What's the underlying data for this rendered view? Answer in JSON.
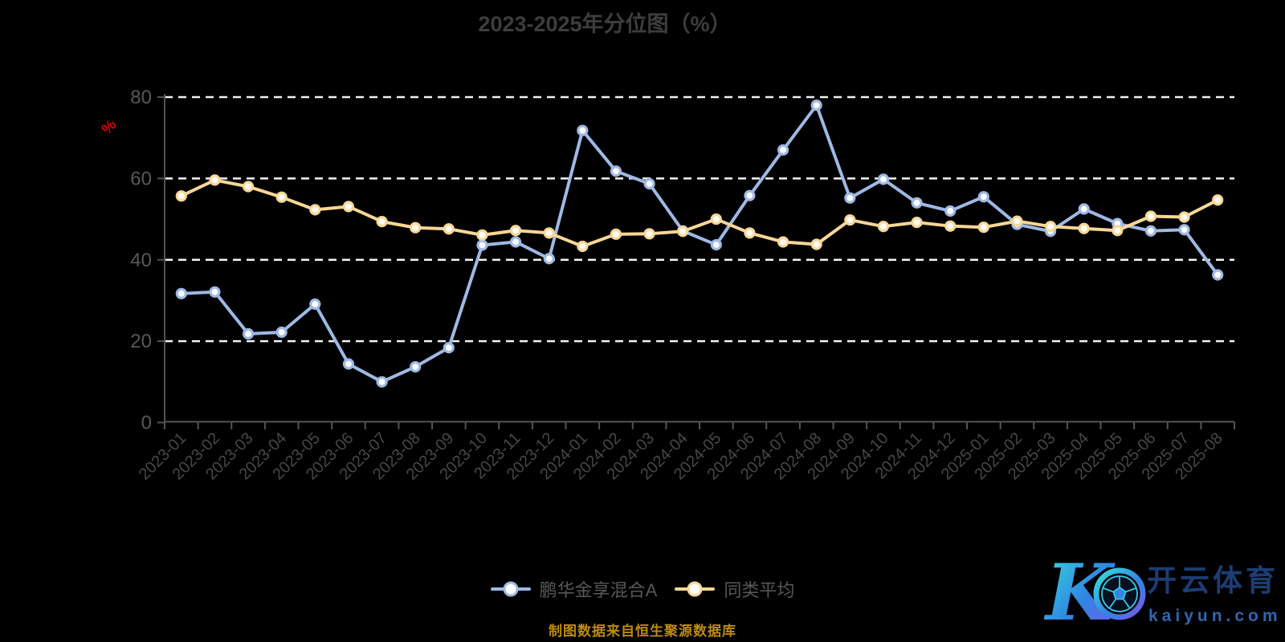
{
  "title": "2023-2025年分位图（%）",
  "footer": "制图数据来自恒生聚源数据库",
  "unit_label": "%",
  "colors": {
    "background": "#000000",
    "title_text": "#3d3d3d",
    "grid_line": "#f2f2f2",
    "axis_line": "#535353",
    "y_label_text": "#585858",
    "x_label_text": "#474747",
    "unit_label_text": "#d40000",
    "footer_text": "#bd8a12",
    "series_fund": "#9eb9e4",
    "series_avg": "#f9d795",
    "marker_fill": "#ffffff",
    "brand_navy": "#1c3c74",
    "brand_blue": "#2e66b0",
    "brand_cyan": "#38e0d8"
  },
  "watermark": {
    "brand_cn": "开云体育",
    "brand_url": "kaiyun.com"
  },
  "chart_data": {
    "type": "line",
    "title": "2023-2025年分位图（%）",
    "ylabel": "%",
    "xlabel": "",
    "ylim": [
      0,
      80
    ],
    "ytick_interval": 20,
    "grid": "horizontal dashed white lines at 20/40/60/80",
    "legend_position": "bottom center",
    "categories": [
      "2023-01",
      "2023-02",
      "2023-03",
      "2023-04",
      "2023-05",
      "2023-06",
      "2023-07",
      "2023-08",
      "2023-09",
      "2023-10",
      "2023-11",
      "2023-12",
      "2024-01",
      "2024-02",
      "2024-03",
      "2024-04",
      "2024-05",
      "2024-06",
      "2024-07",
      "2024-08",
      "2024-09",
      "2024-10",
      "2024-11",
      "2024-12",
      "2025-01",
      "2025-02",
      "2025-03",
      "2025-04",
      "2025-05",
      "2025-06",
      "2025-07",
      "2025-08"
    ],
    "series": [
      {
        "name": "鹏华金享混合A",
        "color": "#9eb9e4",
        "values": [
          31.7,
          32.1,
          21.8,
          22.2,
          29.1,
          14.4,
          10.0,
          13.7,
          18.4,
          43.6,
          44.4,
          40.3,
          71.8,
          61.8,
          58.7,
          47.1,
          43.7,
          55.8,
          67.0,
          78.0,
          55.2,
          59.8,
          54.0,
          52.0,
          55.5,
          48.7,
          47.0,
          52.5,
          48.9,
          47.1,
          47.4,
          36.3
        ]
      },
      {
        "name": "同类平均",
        "color": "#f9d795",
        "values": [
          55.7,
          59.6,
          58.0,
          55.4,
          52.3,
          53.1,
          49.4,
          47.9,
          47.6,
          46.1,
          47.2,
          46.6,
          43.3,
          46.3,
          46.4,
          47.0,
          50.0,
          46.6,
          44.4,
          43.8,
          49.8,
          48.2,
          49.2,
          48.3,
          48.0,
          49.5,
          48.2,
          47.7,
          47.2,
          50.7,
          50.5,
          54.7
        ]
      }
    ]
  }
}
